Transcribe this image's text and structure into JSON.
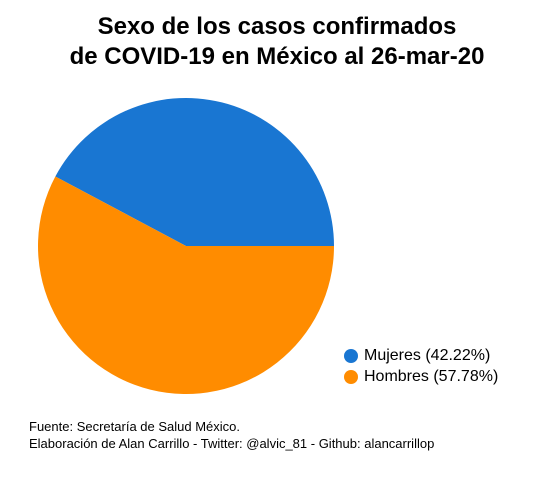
{
  "title_line1": "Sexo de los casos confirmados",
  "title_line2": "de COVID-19 en México al 26-mar-20",
  "chart_data": {
    "type": "pie",
    "title": "Sexo de los casos confirmados de COVID-19 en México al 26-mar-20",
    "categories": [
      "Mujeres",
      "Hombres"
    ],
    "values": [
      42.22,
      57.78
    ],
    "legend_labels": [
      "Mujeres (42.22%)",
      "Hombres (57.78%)"
    ],
    "colors": [
      "#1976d2",
      "#ff8c00"
    ],
    "legend_position": "bottom-right"
  },
  "caption": {
    "line1": "Fuente: Secretaría de Salud México.",
    "line2": "Elaboración de Alan Carrillo - Twitter: @alvic_81 - Github: alancarrillop"
  }
}
